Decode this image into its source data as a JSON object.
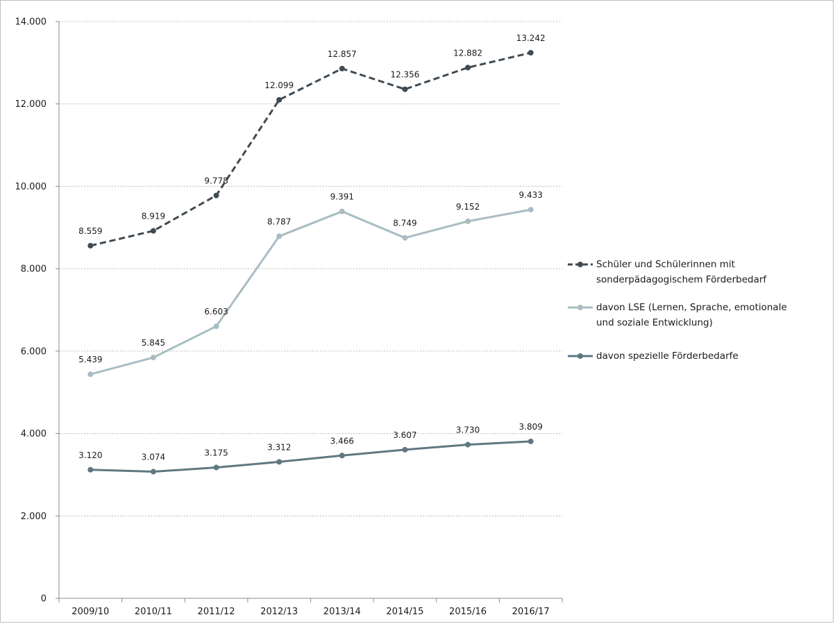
{
  "chart_data": {
    "type": "line",
    "title": "",
    "xlabel": "",
    "ylabel": "",
    "categories": [
      "2009/10",
      "2010/11",
      "2011/12",
      "2012/13",
      "2013/14",
      "2014/15",
      "2015/16",
      "2016/17"
    ],
    "ylim": [
      0,
      14000
    ],
    "yticks": [
      0,
      2000,
      4000,
      6000,
      8000,
      10000,
      12000,
      14000
    ],
    "ytick_labels": [
      "0",
      "2.000",
      "4.000",
      "6.000",
      "8.000",
      "10.000",
      "12.000",
      "14.000"
    ],
    "grid": "horizontal dotted",
    "legend_position": "right",
    "series": [
      {
        "name": "Schüler und Schülerinnen mit sonderpädagogischem Förderbedarf",
        "legend_lines": [
          "Schüler und Schülerinnen mit",
          "sonderpädagogischem Förderbedarf"
        ],
        "values": [
          8559,
          8919,
          9778,
          12099,
          12857,
          12356,
          12882,
          13242
        ],
        "labels": [
          "8.559",
          "8.919",
          "9.778",
          "12.099",
          "12.857",
          "12.356",
          "12.882",
          "13.242"
        ],
        "color": "#3f4a52",
        "dashed": true
      },
      {
        "name": "davon LSE (Lernen, Sprache, emotionale und soziale Entwicklung)",
        "legend_lines": [
          "davon LSE (Lernen, Sprache, emotionale",
          "und soziale Entwicklung)"
        ],
        "values": [
          5439,
          5845,
          6603,
          8787,
          9391,
          8749,
          9152,
          9433
        ],
        "labels": [
          "5.439",
          "5.845",
          "6.603",
          "8.787",
          "9.391",
          "8.749",
          "9.152",
          "9.433"
        ],
        "color": "#a9bcc3",
        "dashed": false
      },
      {
        "name": "davon spezielle Förderbedarfe",
        "legend_lines": [
          "davon spezielle Förderbedarfe"
        ],
        "values": [
          3120,
          3074,
          3175,
          3312,
          3466,
          3607,
          3730,
          3809
        ],
        "labels": [
          "3.120",
          "3.074",
          "3.175",
          "3.312",
          "3.466",
          "3.607",
          "3.730",
          "3.809"
        ],
        "color": "#607781",
        "dashed": false
      }
    ]
  }
}
